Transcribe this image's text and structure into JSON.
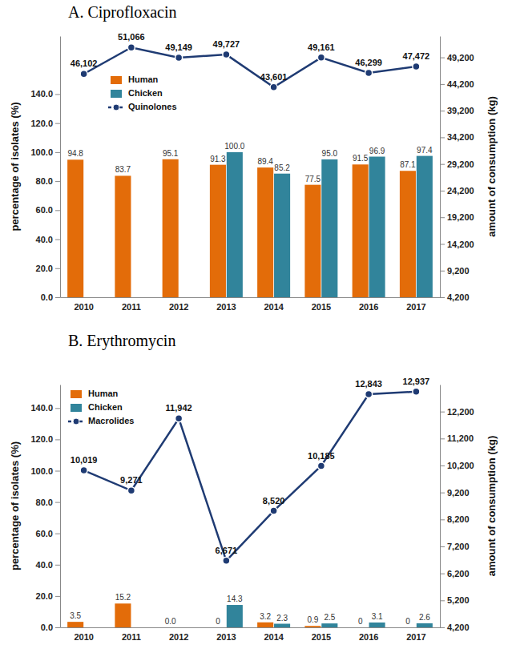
{
  "chart_data": [
    {
      "type": "bar",
      "title": "A. Ciprofloxacin",
      "ylabel": "percentage of isolates (%)",
      "y2label": "amount of consumption (kg)",
      "categories": [
        "2010",
        "2011",
        "2012",
        "2013",
        "2014",
        "2015",
        "2016",
        "2017"
      ],
      "series": [
        {
          "name": "Human",
          "type": "bar",
          "color": "#E36C09",
          "values": [
            94.8,
            83.7,
            95.1,
            91.3,
            89.4,
            77.5,
            91.5,
            87.1
          ]
        },
        {
          "name": "Chicken",
          "type": "bar",
          "color": "#31849B",
          "values": [
            null,
            null,
            null,
            100.0,
            85.2,
            95.0,
            96.9,
            97.4
          ],
          "value_labels": [
            null,
            null,
            null,
            "100.0",
            "85.2",
            "95.0",
            "96.9",
            "97.4"
          ]
        },
        {
          "name": "Quinolones",
          "type": "line",
          "axis": "y2",
          "color": "#1F3B73",
          "marker": "circle",
          "line_style": "solid",
          "values": [
            46102,
            51066,
            49149,
            49727,
            43601,
            49161,
            46299,
            47472
          ],
          "value_labels": [
            "46,102",
            "51,066",
            "49,149",
            "49,727",
            "43,601",
            "49,161",
            "46,299",
            "47,472"
          ]
        }
      ],
      "ylim": [
        0,
        180
      ],
      "yticks": [
        {
          "value": 0,
          "label": "0.0"
        },
        {
          "value": 20,
          "label": "20.0"
        },
        {
          "value": 40,
          "label": "40.0"
        },
        {
          "value": 60,
          "label": "60.0"
        },
        {
          "value": 80,
          "label": "80.0"
        },
        {
          "value": 100,
          "label": "100.0"
        },
        {
          "value": 120,
          "label": "120.0"
        },
        {
          "value": 140,
          "label": "140.0"
        }
      ],
      "y2lim": [
        4200,
        53200
      ],
      "y2ticks": [
        {
          "value": 4200,
          "label": "4,200"
        },
        {
          "value": 9200,
          "label": "9,200"
        },
        {
          "value": 14200,
          "label": "14,200"
        },
        {
          "value": 19200,
          "label": "19,200"
        },
        {
          "value": 24200,
          "label": "24,200"
        },
        {
          "value": 29200,
          "label": "29,200"
        },
        {
          "value": 34200,
          "label": "34,200"
        },
        {
          "value": 39200,
          "label": "39,200"
        },
        {
          "value": 44200,
          "label": "44,200"
        },
        {
          "value": 49200,
          "label": "49,200"
        }
      ],
      "legend": "upper left",
      "data_labels": true,
      "grid": false
    },
    {
      "type": "bar",
      "title": "B. Erythromycin",
      "ylabel": "percentage of isolates (%)",
      "y2label": "amount of consumption (kg)",
      "categories": [
        "2010",
        "2011",
        "2012",
        "2013",
        "2014",
        "2015",
        "2016",
        "2017"
      ],
      "series": [
        {
          "name": "Human",
          "type": "bar",
          "color": "#E36C09",
          "values": [
            3.5,
            15.2,
            0,
            0,
            3.2,
            0.9,
            0,
            0
          ],
          "value_labels": [
            "3.5",
            "15.2",
            "0.0",
            "0",
            "3.2",
            "0.9",
            "0",
            "0"
          ]
        },
        {
          "name": "Chicken",
          "type": "bar",
          "color": "#31849B",
          "values": [
            null,
            null,
            null,
            14.3,
            2.3,
            2.5,
            3.1,
            2.6
          ]
        },
        {
          "name": "Macrolides",
          "type": "line",
          "axis": "y2",
          "color": "#1F3B73",
          "marker": "circle",
          "line_style": "solid",
          "values": [
            10019,
            9271,
            11942,
            6671,
            8520,
            10185,
            12843,
            12937
          ],
          "value_labels": [
            "10,019",
            "9,271",
            "11,942",
            "6,671",
            "8,520",
            "10,185",
            "12,843",
            "12,937"
          ]
        }
      ],
      "ylim": [
        0,
        155
      ],
      "yticks": [
        {
          "value": 0,
          "label": "0.0"
        },
        {
          "value": 20,
          "label": "20.0"
        },
        {
          "value": 40,
          "label": "40.0"
        },
        {
          "value": 60,
          "label": "60.0"
        },
        {
          "value": 80,
          "label": "80.0"
        },
        {
          "value": 100,
          "label": "100.0"
        },
        {
          "value": 120,
          "label": "120.0"
        },
        {
          "value": 140,
          "label": "140.0"
        }
      ],
      "y2lim": [
        4200,
        13200
      ],
      "y2ticks": [
        {
          "value": 4200,
          "label": "4,200"
        },
        {
          "value": 5200,
          "label": "5,200"
        },
        {
          "value": 6200,
          "label": "6,200"
        },
        {
          "value": 7200,
          "label": "7,200"
        },
        {
          "value": 8200,
          "label": "8,200"
        },
        {
          "value": 9200,
          "label": "9,200"
        },
        {
          "value": 10200,
          "label": "10,200"
        },
        {
          "value": 11200,
          "label": "11,200"
        },
        {
          "value": 12200,
          "label": "12,200"
        }
      ],
      "legend": "upper left",
      "data_labels": true,
      "grid": false
    }
  ]
}
